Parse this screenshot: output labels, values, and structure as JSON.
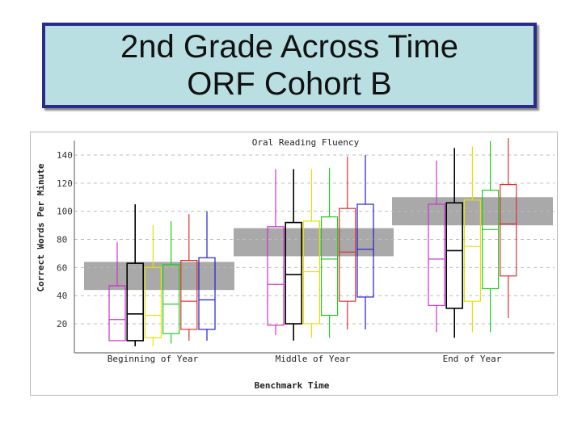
{
  "header": {
    "title_line1": "2nd Grade Across Time",
    "title_line2": "ORF Cohort B"
  },
  "chart_data": {
    "type": "box",
    "title": "Oral Reading Fluency",
    "xlabel": "Benchmark Time",
    "ylabel": "Correct Words Per Minute",
    "ylim": [
      0,
      146
    ],
    "y_ticks": [
      20,
      40,
      60,
      80,
      100,
      120,
      140
    ],
    "grid": "dashed horizontal",
    "categories": [
      "Beginning of Year",
      "Middle of Year",
      "End of Year"
    ],
    "benchmark_bands": [
      {
        "period": "Beginning of Year",
        "low": 44,
        "high": 64
      },
      {
        "period": "Middle of Year",
        "low": 68,
        "high": 88
      },
      {
        "period": "End of Year",
        "low": 90,
        "high": 110
      }
    ],
    "series_colors": [
      "#cc33cc",
      "#000000",
      "#e8e000",
      "#22cc22",
      "#e03030",
      "#2020cc"
    ],
    "boxes": [
      [
        {
          "min": 8,
          "q1": 8,
          "median": 23,
          "q3": 47,
          "max": 78
        },
        {
          "min": 4,
          "q1": 8,
          "median": 27,
          "q3": 63,
          "max": 105
        },
        {
          "min": 4,
          "q1": 10,
          "median": 26,
          "q3": 60,
          "max": 90
        },
        {
          "min": 6,
          "q1": 13,
          "median": 34,
          "q3": 62,
          "max": 93
        },
        {
          "min": 8,
          "q1": 16,
          "median": 36,
          "q3": 65,
          "max": 98
        },
        {
          "min": 8,
          "q1": 16,
          "median": 37,
          "q3": 67,
          "max": 100
        }
      ],
      [
        {
          "min": 12,
          "q1": 19,
          "median": 48,
          "q3": 89,
          "max": 130
        },
        {
          "min": 8,
          "q1": 20,
          "median": 55,
          "q3": 92,
          "max": 130
        },
        {
          "min": 10,
          "q1": 20,
          "median": 57,
          "q3": 93,
          "max": 130
        },
        {
          "min": 10,
          "q1": 26,
          "median": 66,
          "q3": 96,
          "max": 131
        },
        {
          "min": 16,
          "q1": 36,
          "median": 71,
          "q3": 102,
          "max": 139
        },
        {
          "min": 16,
          "q1": 39,
          "median": 73,
          "q3": 105,
          "max": 140
        }
      ],
      [
        {
          "min": 14,
          "q1": 33,
          "median": 66,
          "q3": 105,
          "max": 136
        },
        {
          "min": 10,
          "q1": 31,
          "median": 72,
          "q3": 106,
          "max": 145
        },
        {
          "min": 14,
          "q1": 36,
          "median": 75,
          "q3": 108,
          "max": 146
        },
        {
          "min": 14,
          "q1": 45,
          "median": 87,
          "q3": 115,
          "max": 150
        },
        {
          "min": 24,
          "q1": 54,
          "median": 91,
          "q3": 119,
          "max": 152
        }
      ]
    ]
  }
}
